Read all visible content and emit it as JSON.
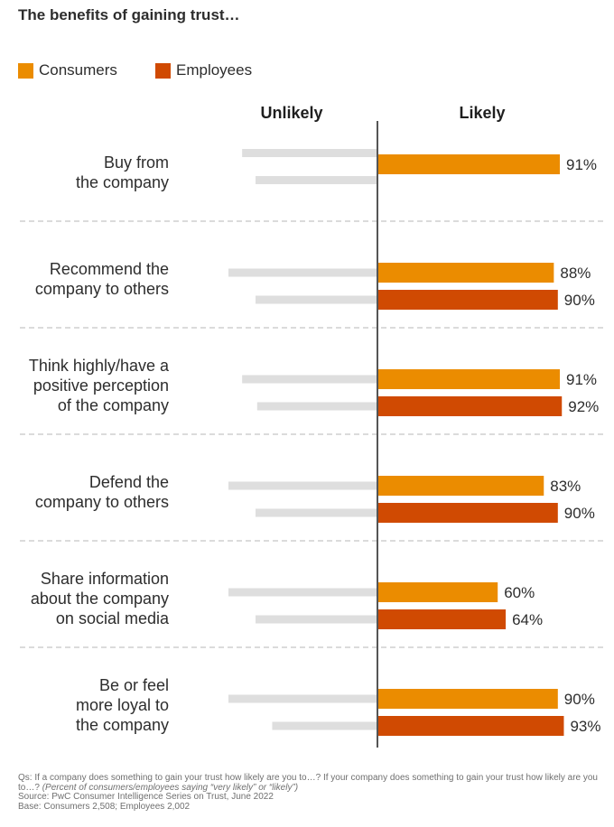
{
  "title": "The benefits of gaining trust…",
  "legend": [
    {
      "label": "Consumers",
      "color": "#eb8c00"
    },
    {
      "label": "Employees",
      "color": "#d04a02"
    }
  ],
  "chart_data": {
    "type": "bar",
    "orientation": "horizontal-diverging",
    "left_header": "Unlikely",
    "right_header": "Likely",
    "categories": [
      [
        "Buy from",
        "the company"
      ],
      [
        "Recommend the",
        "company to others"
      ],
      [
        "Think highly/have a",
        "positive perception",
        "of the company"
      ],
      [
        "Defend the",
        "company to others"
      ],
      [
        "Share information",
        "about the company",
        "on social media"
      ],
      [
        "Be or feel",
        "more loyal to",
        "the company"
      ]
    ],
    "series": [
      {
        "name": "Consumers",
        "color": "#eb8c00",
        "likely": [
          91,
          88,
          91,
          83,
          60,
          90
        ],
        "labels": [
          "91%",
          "88%",
          "91%",
          "83%",
          "60%",
          "90%"
        ]
      },
      {
        "name": "Employees",
        "color": "#d04a02",
        "likely": [
          null,
          90,
          92,
          90,
          64,
          93
        ],
        "labels": [
          "",
          "90%",
          "92%",
          "90%",
          "64%",
          "93%"
        ]
      }
    ],
    "unlikely_color": "#dedede"
  },
  "footnote": {
    "question": "Qs: If a company does something to gain your trust how likely are you to…? If your company does something to gain your trust how likely are you to…?",
    "note": "(Percent of consumers/employees saying “very likely” or “likely”)",
    "source": "Source: PwC Consumer Intelligence Series on Trust, June 2022",
    "base": "Base: Consumers 2,508; Employees 2,002"
  }
}
